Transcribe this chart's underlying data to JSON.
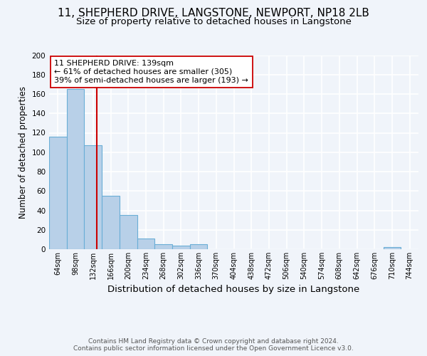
{
  "title": "11, SHEPHERD DRIVE, LANGSTONE, NEWPORT, NP18 2LB",
  "subtitle": "Size of property relative to detached houses in Langstone",
  "xlabel": "Distribution of detached houses by size in Langstone",
  "ylabel": "Number of detached properties",
  "bin_labels": [
    "64sqm",
    "98sqm",
    "132sqm",
    "166sqm",
    "200sqm",
    "234sqm",
    "268sqm",
    "302sqm",
    "336sqm",
    "370sqm",
    "404sqm",
    "438sqm",
    "472sqm",
    "506sqm",
    "540sqm",
    "574sqm",
    "608sqm",
    "642sqm",
    "676sqm",
    "710sqm",
    "744sqm"
  ],
  "bin_left_edges": [
    47,
    81,
    115,
    149,
    183,
    217,
    251,
    285,
    319,
    353,
    387,
    421,
    455,
    489,
    523,
    557,
    591,
    625,
    659,
    693,
    727
  ],
  "bin_width": 34,
  "bar_heights": [
    116,
    165,
    107,
    55,
    35,
    11,
    5,
    4,
    5,
    0,
    0,
    0,
    0,
    0,
    0,
    0,
    0,
    0,
    0,
    2,
    0
  ],
  "bar_color": "#b8d0e8",
  "bar_edge_color": "#6aaed6",
  "property_size": 139,
  "vline_color": "#cc0000",
  "annotation_text": "11 SHEPHERD DRIVE: 139sqm\n← 61% of detached houses are smaller (305)\n39% of semi-detached houses are larger (193) →",
  "annotation_box_color": "#ffffff",
  "annotation_box_edge": "#cc0000",
  "ylim": [
    0,
    200
  ],
  "yticks": [
    0,
    20,
    40,
    60,
    80,
    100,
    120,
    140,
    160,
    180,
    200
  ],
  "footer_text": "Contains HM Land Registry data © Crown copyright and database right 2024.\nContains public sector information licensed under the Open Government Licence v3.0.",
  "background_color": "#f0f4fa",
  "grid_color": "#ffffff",
  "title_fontsize": 11,
  "subtitle_fontsize": 9.5,
  "ylabel_fontsize": 8.5,
  "xlabel_fontsize": 9.5,
  "tick_label_fontsize": 7,
  "footer_fontsize": 6.5
}
